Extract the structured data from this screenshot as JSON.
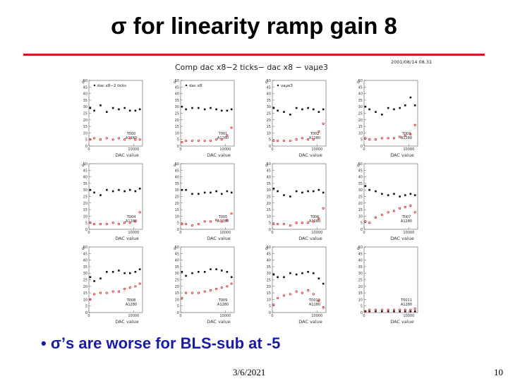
{
  "slide": {
    "title_symbol": "σ",
    "title_text": " for linearity ramp gain 8",
    "bullet_marker": "•",
    "bullet_symbol": "σ",
    "bullet_text": "’s are worse for BLS-sub at -5",
    "footer_date": "3/6/2021",
    "page_number": "10",
    "accent_color": "#d11a1a",
    "bullet_color": "#1a1aa8"
  },
  "figure": {
    "header_title": "Comp dac x8−2 ticks− dac x8 − νaμe3",
    "timestamp": "2001/08/14   08.31"
  },
  "chart_data": {
    "type": "scatter",
    "title": "Comp dac x8−2 ticks− dac x8 − νaμe3",
    "xlabel": "DAC value",
    "ylabel": "σ",
    "xlim": [
      0,
      12000
    ],
    "ylim": [
      0,
      50
    ],
    "yticks": [
      "0",
      "5",
      "10",
      "15",
      "20",
      "25",
      "30",
      "35",
      "40",
      "45",
      "50"
    ],
    "xticks": [
      {
        "value": 0,
        "label": "0"
      },
      {
        "value": 10000,
        "label": "10000"
      }
    ],
    "x": [
      300,
      1200,
      2600,
      4000,
      5400,
      6700,
      8000,
      9200,
      10400,
      11400
    ],
    "legend": [
      {
        "label": "dac x8−2 ticks",
        "marker": "square",
        "color": "#111111"
      },
      {
        "label": "dac x8",
        "marker": "dot",
        "color": "#111111"
      },
      {
        "label": "νaμe3",
        "marker": "open-circle",
        "color": "#d42020"
      }
    ],
    "panels": [
      {
        "name": "T000",
        "sub": "A1280",
        "legend_index": 0,
        "black": [
          29,
          27,
          31,
          26,
          29,
          28,
          29,
          27,
          27,
          28
        ],
        "red": [
          5,
          6,
          5,
          6,
          5,
          6,
          5,
          6,
          5,
          5
        ]
      },
      {
        "name": "T001",
        "sub": "A1280",
        "legend_index": 1,
        "black": [
          30,
          28,
          29,
          29,
          28,
          29,
          28,
          27,
          27,
          28
        ],
        "red": [
          3,
          4,
          4,
          4,
          4,
          4,
          5,
          5,
          8,
          14
        ]
      },
      {
        "name": "T002",
        "sub": "A1280",
        "legend_index": 2,
        "black": [
          29,
          27,
          26,
          24,
          29,
          28,
          29,
          28,
          26,
          28
        ],
        "red": [
          4,
          4,
          4,
          4,
          5,
          6,
          5,
          5,
          11,
          17
        ]
      },
      {
        "name": "T003",
        "sub": "A1280",
        "legend_index": -1,
        "black": [
          30,
          28,
          26,
          24,
          29,
          28,
          29,
          31,
          37,
          31
        ],
        "red": [
          6,
          5,
          5,
          6,
          6,
          6,
          7,
          8,
          9,
          16
        ]
      },
      {
        "name": "T004",
        "sub": "A1280",
        "legend_index": -1,
        "black": [
          30,
          28,
          26,
          30,
          29,
          30,
          29,
          30,
          29,
          31
        ],
        "red": [
          5,
          4,
          4,
          4,
          5,
          4,
          5,
          5,
          6,
          13
        ]
      },
      {
        "name": "T005",
        "sub": "A1280",
        "legend_index": -1,
        "black": [
          30,
          30,
          27,
          27,
          28,
          28,
          29,
          27,
          29,
          28
        ],
        "red": [
          4,
          4,
          3,
          4,
          6,
          6,
          7,
          6,
          7,
          12
        ]
      },
      {
        "name": "T006",
        "sub": "A1280",
        "legend_index": -1,
        "black": [
          31,
          29,
          26,
          25,
          29,
          28,
          29,
          29,
          30,
          28
        ],
        "red": [
          4,
          4,
          4,
          3,
          5,
          5,
          5,
          6,
          8,
          16
        ]
      },
      {
        "name": "T007",
        "sub": "A1280",
        "legend_index": -1,
        "black": [
          33,
          30,
          29,
          27,
          26,
          27,
          25,
          26,
          27,
          26
        ],
        "red": [
          6,
          5,
          9,
          11,
          13,
          14,
          16,
          17,
          18,
          13
        ]
      },
      {
        "name": "T008",
        "sub": "A1280",
        "legend_index": -1,
        "black": [
          27,
          24,
          26,
          31,
          31,
          32,
          30,
          30,
          31,
          33
        ],
        "red": [
          10,
          14,
          15,
          15,
          16,
          16,
          18,
          19,
          20,
          22
        ]
      },
      {
        "name": "T009",
        "sub": "A1280",
        "legend_index": -1,
        "black": [
          31,
          28,
          30,
          31,
          31,
          33,
          33,
          32,
          31,
          27
        ],
        "red": [
          11,
          15,
          15,
          15,
          16,
          17,
          18,
          19,
          20,
          22
        ]
      },
      {
        "name": "T0010",
        "sub": "A1280",
        "legend_index": -1,
        "black": [
          29,
          27,
          27,
          30,
          29,
          30,
          31,
          30,
          26,
          22
        ],
        "red": [
          6,
          11,
          13,
          14,
          16,
          15,
          17,
          14,
          9,
          4
        ]
      },
      {
        "name": "T0011",
        "sub": "A1280",
        "legend_index": -1,
        "black": [
          1,
          1,
          1,
          1,
          1,
          1,
          1,
          1,
          1,
          1
        ],
        "red": [
          1,
          2,
          2,
          2,
          2,
          2,
          2,
          2,
          2,
          3
        ]
      }
    ]
  }
}
